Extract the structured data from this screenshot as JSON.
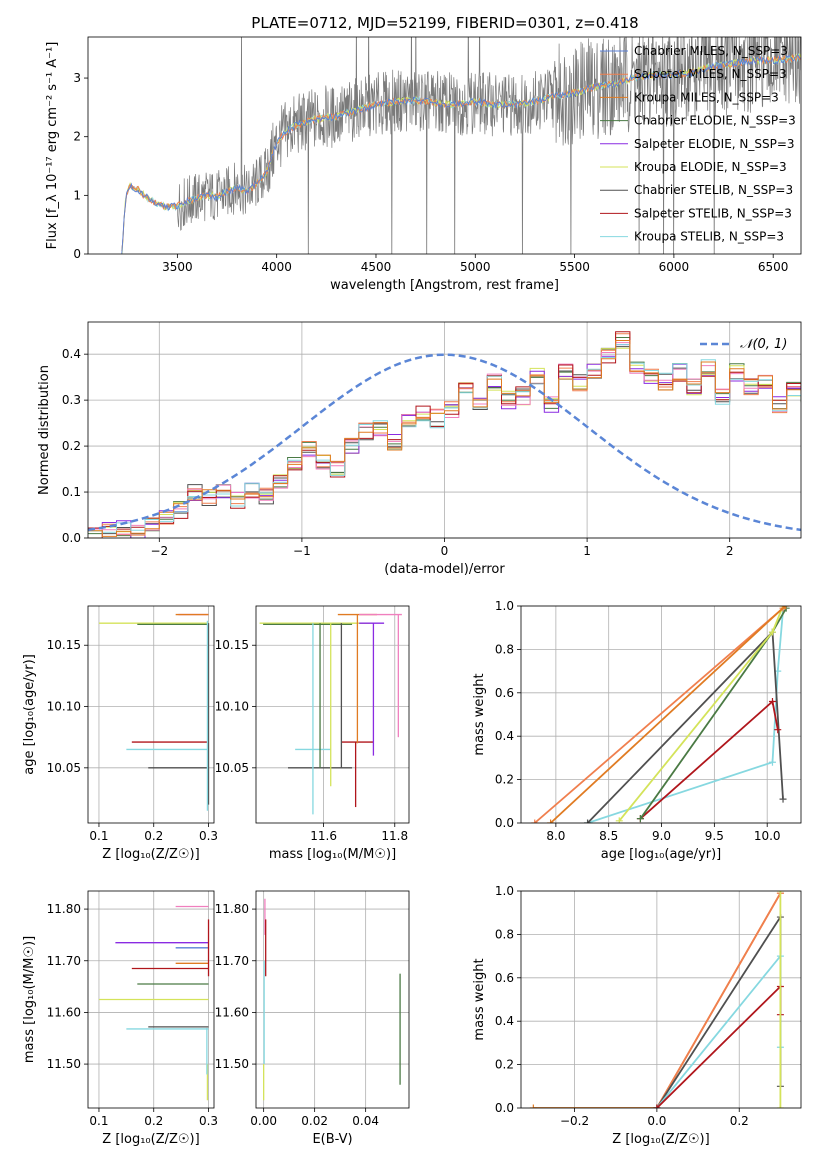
{
  "figure": {
    "title": "PLATE=0712, MJD=52199, FIBERID=0301, z=0.418"
  },
  "colors": {
    "Chabrier MILES": "#5a7fd6",
    "Salpeter MILES": "#f07f4e",
    "Kroupa MILES": "#e07b22",
    "Chabrier ELODIE": "#4a7a44",
    "Salpeter ELODIE": "#8a2be2",
    "Kroupa ELODIE": "#d4e35a",
    "Chabrier STELIB": "#505050",
    "Salpeter STELIB": "#b0161c",
    "Kroupa STELIB": "#86d8e0",
    "pink": "#f07fbe",
    "normal_curve": "#5b86d6",
    "data": "#7a7a7a"
  },
  "chart_data": [
    {
      "type": "line",
      "panel": "spectrum",
      "xlabel": "wavelength [Angstrom, rest frame]",
      "ylabel": "Flux [f_λ 10⁻¹⁷ erg cm⁻² s⁻¹ A⁻¹]",
      "xlim": [
        3050,
        6640
      ],
      "ylim": [
        0,
        3.7
      ],
      "xticks": [
        3500,
        4000,
        4500,
        5000,
        5500,
        6000,
        6500
      ],
      "yticks": [
        0,
        1,
        2,
        3
      ],
      "legend_placement": "top-right",
      "legend": [
        "Chabrier MILES, N_SSP=3",
        "Salpeter MILES, N_SSP=3",
        "Kroupa MILES, N_SSP=3",
        "Chabrier ELODIE, N_SSP=3",
        "Salpeter ELODIE, N_SSP=3",
        "Kroupa ELODIE, N_SSP=3",
        "Chabrier STELIB, N_SSP=3",
        "Salpeter STELIB, N_SSP=3",
        "Kroupa STELIB, N_SSP=3"
      ],
      "continuum": {
        "x": [
          3220,
          3240,
          3260,
          3300,
          3350,
          3400,
          3450,
          3500,
          3550,
          3600,
          3650,
          3700,
          3750,
          3800,
          3850,
          3900,
          3950,
          4000,
          4050,
          4100,
          4200,
          4300,
          4400,
          4500,
          4600,
          4700,
          4800,
          4900,
          5000,
          5100,
          5200,
          5300,
          5400,
          5500,
          5600,
          5700,
          5800,
          5900,
          6000,
          6100,
          6200,
          6300,
          6400,
          6500,
          6640
        ],
        "y": [
          0.0,
          0.95,
          1.15,
          1.1,
          0.95,
          0.85,
          0.8,
          0.82,
          0.9,
          0.95,
          1.0,
          0.98,
          1.05,
          1.15,
          1.05,
          1.2,
          1.4,
          1.9,
          2.1,
          2.2,
          2.3,
          2.35,
          2.45,
          2.55,
          2.6,
          2.62,
          2.58,
          2.55,
          2.6,
          2.55,
          2.55,
          2.6,
          2.7,
          2.75,
          2.85,
          2.9,
          3.0,
          3.05,
          3.05,
          3.1,
          3.2,
          3.25,
          3.3,
          3.3,
          3.35
        ]
      }
    },
    {
      "type": "line",
      "panel": "residual distribution",
      "xlabel": "(data-model)/error",
      "ylabel": "Normed distribution",
      "xlim": [
        -2.5,
        2.5
      ],
      "ylim": [
        0,
        0.47
      ],
      "xticks": [
        -2,
        -1,
        0,
        1,
        2
      ],
      "yticks": [
        0.0,
        0.1,
        0.2,
        0.3,
        0.4
      ],
      "legend_placement": "top-right",
      "series": [
        {
          "name": "𝒩(0, 1)",
          "style": "dashed"
        }
      ],
      "histogram": {
        "bin_width": 0.1,
        "x_start": -2.5,
        "heights": [
          0.01,
          0.02,
          0.02,
          0.01,
          0.03,
          0.04,
          0.06,
          0.1,
          0.09,
          0.1,
          0.08,
          0.1,
          0.09,
          0.12,
          0.16,
          0.19,
          0.17,
          0.15,
          0.2,
          0.23,
          0.24,
          0.21,
          0.25,
          0.27,
          0.26,
          0.28,
          0.32,
          0.29,
          0.34,
          0.3,
          0.31,
          0.35,
          0.29,
          0.36,
          0.34,
          0.36,
          0.4,
          0.43,
          0.37,
          0.35,
          0.34,
          0.36,
          0.33,
          0.37,
          0.31,
          0.36,
          0.33,
          0.34,
          0.29,
          0.32,
          0.31,
          0.28,
          0.32,
          0.29,
          0.27,
          0.25,
          0.23,
          0.2,
          0.18,
          0.19,
          0.17,
          0.16,
          0.15,
          0.14,
          0.13,
          0.11,
          0.1,
          0.09,
          0.08,
          0.08,
          0.08,
          0.07,
          0.06,
          0.06,
          0.05
        ]
      }
    },
    {
      "type": "scatter",
      "panel": "age vs Z",
      "xlabel": "Z [log₁₀(Z/Z☉)]",
      "ylabel": "age  [log₁₀(age/yr)]",
      "xlim": [
        0.08,
        0.31
      ],
      "ylim": [
        10.005,
        10.182
      ],
      "xticks": [
        0.1,
        0.2,
        0.3
      ],
      "yticks": [
        10.05,
        10.1,
        10.15
      ],
      "segments": [
        {
          "color": "pink",
          "x1": 0.245,
          "x2": 0.3,
          "y": 10.175
        },
        {
          "color": "Kroupa MILES",
          "x1": 0.24,
          "x2": 0.3,
          "y": 10.175
        },
        {
          "color": "Kroupa ELODIE",
          "x1": 0.1,
          "x2": 0.3,
          "y": 10.168
        },
        {
          "color": "Chabrier ELODIE",
          "x1": 0.17,
          "x2": 0.3,
          "y": 10.167
        },
        {
          "color": "Salpeter STELIB",
          "x1": 0.16,
          "x2": 0.3,
          "y": 10.071
        },
        {
          "color": "Kroupa STELIB",
          "x1": 0.15,
          "x2": 0.3,
          "y": 10.065
        },
        {
          "color": "Chabrier STELIB",
          "x1": 0.19,
          "x2": 0.3,
          "y": 10.05
        }
      ],
      "verticals": [
        {
          "color": "Chabrier STELIB",
          "x": 0.3,
          "y1": 10.02,
          "y2": 10.168
        },
        {
          "color": "Kroupa STELIB",
          "x": 0.298,
          "y1": 10.015,
          "y2": 10.17
        }
      ]
    },
    {
      "type": "scatter",
      "panel": "age vs mass",
      "xlabel": "mass [log₁₀(M/M☉)]",
      "ylabel": "",
      "xlim": [
        11.41,
        11.84
      ],
      "ylim": [
        10.005,
        10.182
      ],
      "xticks": [
        11.6,
        11.8
      ],
      "yticks": [
        10.05,
        10.1,
        10.15
      ],
      "segments": [
        {
          "color": "Kroupa MILES",
          "x1": 11.64,
          "x2": 11.75,
          "y": 10.175
        },
        {
          "color": "pink",
          "x1": 11.7,
          "x2": 11.82,
          "y": 10.175
        },
        {
          "color": "Kroupa ELODIE",
          "x1": 11.42,
          "x2": 11.73,
          "y": 10.168
        },
        {
          "color": "Chabrier ELODIE",
          "x1": 11.43,
          "x2": 11.68,
          "y": 10.167
        },
        {
          "color": "Salpeter ELODIE",
          "x1": 11.7,
          "x2": 11.77,
          "y": 10.168
        },
        {
          "color": "Salpeter STELIB",
          "x1": 11.65,
          "x2": 11.74,
          "y": 10.071
        },
        {
          "color": "Kroupa STELIB",
          "x1": 11.52,
          "x2": 11.62,
          "y": 10.065
        },
        {
          "color": "Chabrier STELIB",
          "x1": 11.5,
          "x2": 11.68,
          "y": 10.05
        }
      ],
      "verticals": [
        {
          "color": "Kroupa STELIB",
          "x": 11.57,
          "y1": 10.012,
          "y2": 10.168
        },
        {
          "color": "Chabrier ELODIE",
          "x": 11.59,
          "y1": 10.05,
          "y2": 10.168
        },
        {
          "color": "Kroupa ELODIE",
          "x": 11.62,
          "y1": 10.035,
          "y2": 10.168
        },
        {
          "color": "Chabrier STELIB",
          "x": 11.65,
          "y1": 10.05,
          "y2": 10.168
        },
        {
          "color": "Kroupa MILES",
          "x": 11.695,
          "y1": 10.07,
          "y2": 10.175
        },
        {
          "color": "Salpeter STELIB",
          "x": 11.69,
          "y1": 10.018,
          "y2": 10.071
        },
        {
          "color": "Salpeter ELODIE",
          "x": 11.74,
          "y1": 10.06,
          "y2": 10.168
        },
        {
          "color": "pink",
          "x": 11.81,
          "y1": 10.075,
          "y2": 10.175
        }
      ]
    },
    {
      "type": "line",
      "panel": "mass weight vs age",
      "xlabel": "age  [log₁₀(age/yr)]",
      "ylabel": "mass weight",
      "xlim": [
        7.67,
        10.32
      ],
      "ylim": [
        0,
        1
      ],
      "xticks": [
        8.0,
        8.5,
        9.0,
        9.5,
        10.0
      ],
      "yticks": [
        0.0,
        0.2,
        0.4,
        0.6,
        0.8,
        1.0
      ],
      "series": [
        {
          "color": "Kroupa STELIB",
          "x": [
            8.3,
            10.05,
            10.1,
            10.15
          ],
          "y": [
            0.0,
            0.28,
            0.7,
            0.98
          ]
        },
        {
          "color": "Chabrier STELIB",
          "x": [
            8.3,
            10.05,
            10.15
          ],
          "y": [
            0.0,
            0.88,
            0.11
          ]
        },
        {
          "color": "Salpeter STELIB",
          "x": [
            8.8,
            10.05,
            10.1
          ],
          "y": [
            0.02,
            0.56,
            0.43
          ]
        },
        {
          "color": "Chabrier ELODIE",
          "x": [
            8.8,
            10.05,
            10.18
          ],
          "y": [
            0.02,
            0.88,
            0.99
          ]
        },
        {
          "color": "Kroupa ELODIE",
          "x": [
            8.6,
            10.05,
            10.15
          ],
          "y": [
            0.01,
            0.88,
            1.0
          ]
        },
        {
          "color": "Salpeter MILES",
          "x": [
            7.8,
            10.15
          ],
          "y": [
            0.0,
            0.99
          ]
        },
        {
          "color": "Kroupa MILES",
          "x": [
            7.95,
            10.17
          ],
          "y": [
            0.0,
            1.0
          ]
        }
      ]
    },
    {
      "type": "scatter",
      "panel": "mass vs Z",
      "xlabel": "Z [log₁₀(Z/Z☉)]",
      "ylabel": "mass [log₁₀(M/M☉)]",
      "xlim": [
        0.08,
        0.31
      ],
      "ylim": [
        11.415,
        11.835
      ],
      "xticks": [
        0.1,
        0.2,
        0.3
      ],
      "yticks": [
        11.5,
        11.6,
        11.7,
        11.8
      ],
      "segments": [
        {
          "color": "pink",
          "x1": 0.24,
          "x2": 0.3,
          "y": 11.805
        },
        {
          "color": "Salpeter ELODIE",
          "x1": 0.13,
          "x2": 0.3,
          "y": 11.735
        },
        {
          "color": "Chabrier MILES",
          "x1": 0.24,
          "x2": 0.3,
          "y": 11.725
        },
        {
          "color": "Kroupa MILES",
          "x1": 0.24,
          "x2": 0.3,
          "y": 11.695
        },
        {
          "color": "Salpeter STELIB",
          "x1": 0.16,
          "x2": 0.3,
          "y": 11.685
        },
        {
          "color": "Chabrier ELODIE",
          "x1": 0.17,
          "x2": 0.3,
          "y": 11.655
        },
        {
          "color": "Kroupa ELODIE",
          "x1": 0.1,
          "x2": 0.3,
          "y": 11.625
        },
        {
          "color": "Chabrier STELIB",
          "x1": 0.19,
          "x2": 0.3,
          "y": 11.572
        },
        {
          "color": "Kroupa STELIB",
          "x1": 0.15,
          "x2": 0.3,
          "y": 11.568
        }
      ],
      "verticals": [
        {
          "color": "Salpeter STELIB",
          "x": 0.3,
          "y1": 11.67,
          "y2": 11.78
        },
        {
          "color": "Kroupa ELODIE",
          "x": 0.298,
          "y1": 11.43,
          "y2": 11.5
        },
        {
          "color": "Kroupa STELIB",
          "x": 0.297,
          "y1": 11.48,
          "y2": 11.57
        }
      ]
    },
    {
      "type": "scatter",
      "panel": "mass vs E(B-V)",
      "xlabel": "E(B-V)",
      "ylabel": "",
      "xlim": [
        -0.003,
        0.057
      ],
      "ylim": [
        11.415,
        11.835
      ],
      "xticks": [
        0.0,
        0.02,
        0.04
      ],
      "yticks": [
        11.5,
        11.6,
        11.7,
        11.8
      ],
      "verticals": [
        {
          "color": "pink",
          "x": 0.0005,
          "y1": 11.75,
          "y2": 11.82
        },
        {
          "color": "Salpeter STELIB",
          "x": 0.0008,
          "y1": 11.67,
          "y2": 11.78
        },
        {
          "color": "Kroupa STELIB",
          "x": 0.0002,
          "y1": 11.5,
          "y2": 11.7
        },
        {
          "color": "Kroupa ELODIE",
          "x": 0.0,
          "y1": 11.43,
          "y2": 11.5
        },
        {
          "color": "Chabrier ELODIE",
          "x": 0.0535,
          "y1": 11.46,
          "y2": 11.675
        }
      ]
    },
    {
      "type": "line",
      "panel": "mass weight vs Z",
      "xlabel": "Z [log₁₀(Z/Z☉)]",
      "ylabel": "mass weight",
      "xlim": [
        -0.33,
        0.35
      ],
      "ylim": [
        0,
        1
      ],
      "xticks": [
        -0.2,
        0.0,
        0.2
      ],
      "yticks": [
        0.0,
        0.2,
        0.4,
        0.6,
        0.8,
        1.0
      ],
      "series": [
        {
          "color": "Kroupa MILES",
          "x": [
            -0.3,
            0.0,
            0.3
          ],
          "y": [
            0.0,
            0.0,
            0.99
          ]
        },
        {
          "color": "Salpeter MILES",
          "x": [
            0.0,
            0.3
          ],
          "y": [
            0.0,
            0.99
          ]
        },
        {
          "color": "Chabrier STELIB",
          "x": [
            0.0,
            0.3,
            0.3
          ],
          "y": [
            0.0,
            0.88,
            0.1
          ]
        },
        {
          "color": "Kroupa STELIB",
          "x": [
            0.0,
            0.3,
            0.3
          ],
          "y": [
            0.0,
            0.7,
            0.28
          ]
        },
        {
          "color": "Salpeter STELIB",
          "x": [
            0.0,
            0.3,
            0.3
          ],
          "y": [
            0.0,
            0.56,
            0.43
          ]
        },
        {
          "color": "Kroupa ELODIE",
          "x": [
            0.3,
            0.3
          ],
          "y": [
            0.0,
            1.0
          ]
        }
      ]
    }
  ]
}
